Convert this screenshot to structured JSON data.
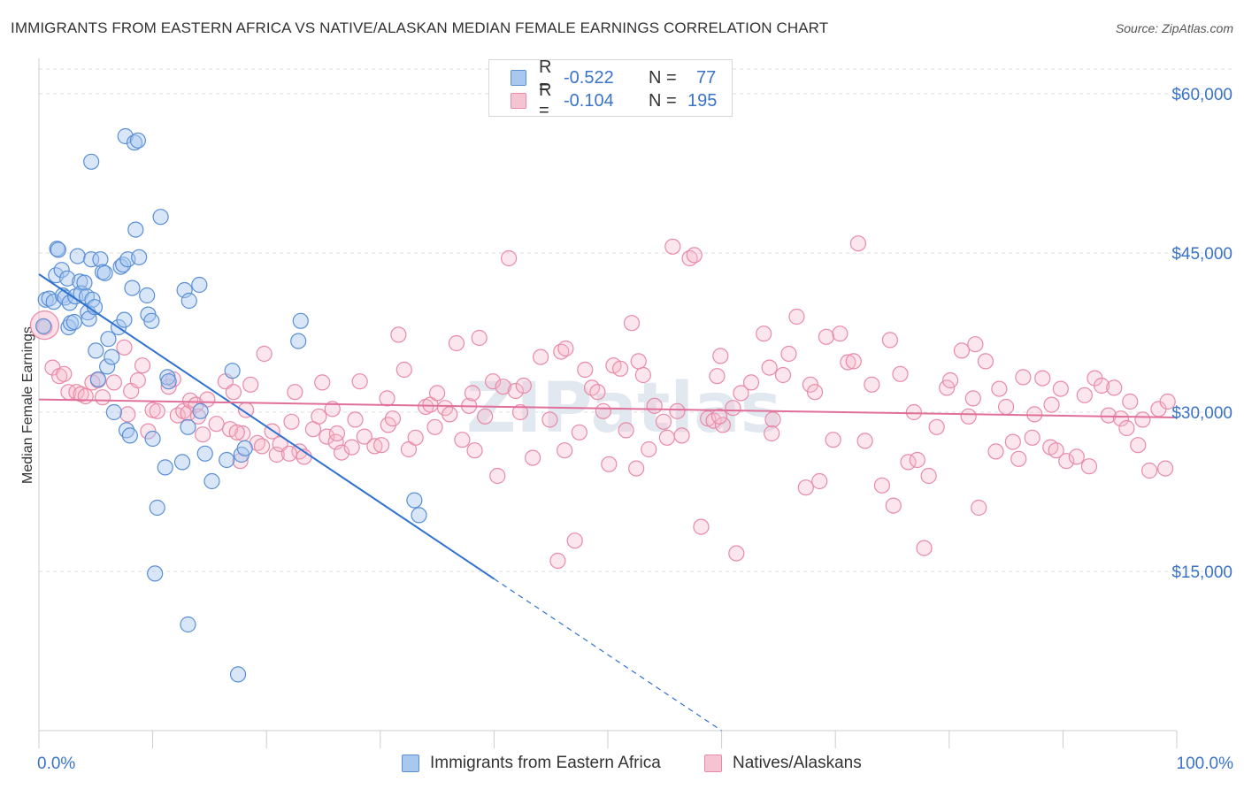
{
  "title": "IMMIGRANTS FROM EASTERN AFRICA VS NATIVE/ALASKAN MEDIAN FEMALE EARNINGS CORRELATION CHART",
  "source": "Source: ZipAtlas.com",
  "watermark": "ZIPatlas",
  "colors": {
    "blue_fill": "#a9c8f0",
    "blue_stroke": "#5a8fd6",
    "blue_line": "#2f72d0",
    "pink_fill": "#f5b8cb",
    "pink_stroke": "#e88aa8",
    "pink_line": "#e0709a",
    "axis_label": "#3a73c9",
    "grid": "#dddddd"
  },
  "legend": {
    "rows": [
      {
        "r_label": "R =",
        "r_value": "-0.522",
        "n_label": "N =",
        "n_value": "77"
      },
      {
        "r_label": "R =",
        "r_value": "-0.104",
        "n_label": "N =",
        "n_value": "195"
      }
    ]
  },
  "bottom_legend": {
    "series1": "Immigrants from Eastern Africa",
    "series2": "Natives/Alaskans"
  },
  "chart_data": {
    "type": "scatter",
    "title": "IMMIGRANTS FROM EASTERN AFRICA VS NATIVE/ALASKAN MEDIAN FEMALE EARNINGS CORRELATION CHART",
    "xlabel": "",
    "ylabel": "Median Female Earnings",
    "xlim": [
      0,
      100
    ],
    "ylim": [
      0,
      63000
    ],
    "x_tick_labels": [
      "0.0%",
      "100.0%"
    ],
    "y_ticks": [
      15000,
      30000,
      45000,
      60000
    ],
    "y_tick_labels": [
      "$15,000",
      "$30,000",
      "$45,000",
      "$60,000"
    ],
    "grid": "horizontal dashed",
    "legend_position": "top-center",
    "series": [
      {
        "name": "Immigrants from Eastern Africa",
        "R": -0.522,
        "N": 77,
        "trend": {
          "x0": 0,
          "y0": 43000,
          "x1": 40,
          "y1": 14300,
          "dash_to_x": 60,
          "dash_to_y": 0
        },
        "points": [
          [
            0.4,
            38100
          ],
          [
            0.6,
            40600
          ],
          [
            0.9,
            40700
          ],
          [
            1.3,
            40400
          ],
          [
            1.5,
            42900
          ],
          [
            1.6,
            45400
          ],
          [
            1.7,
            45300
          ],
          [
            2.0,
            43400
          ],
          [
            2.1,
            41000
          ],
          [
            2.3,
            40800
          ],
          [
            2.5,
            42600
          ],
          [
            2.6,
            38000
          ],
          [
            2.7,
            40300
          ],
          [
            2.8,
            38400
          ],
          [
            3.1,
            38500
          ],
          [
            3.2,
            40900
          ],
          [
            3.4,
            44700
          ],
          [
            3.6,
            42300
          ],
          [
            3.7,
            41200
          ],
          [
            4.0,
            42200
          ],
          [
            4.2,
            40900
          ],
          [
            4.3,
            39400
          ],
          [
            4.4,
            38800
          ],
          [
            4.6,
            44400
          ],
          [
            4.7,
            40600
          ],
          [
            4.9,
            39900
          ],
          [
            5.0,
            35800
          ],
          [
            5.2,
            33100
          ],
          [
            5.4,
            44400
          ],
          [
            5.6,
            43200
          ],
          [
            5.8,
            43100
          ],
          [
            6.0,
            34300
          ],
          [
            6.1,
            36900
          ],
          [
            6.4,
            35200
          ],
          [
            6.6,
            30000
          ],
          [
            7.0,
            38000
          ],
          [
            7.2,
            43700
          ],
          [
            7.4,
            43900
          ],
          [
            7.5,
            38700
          ],
          [
            7.6,
            56000
          ],
          [
            7.7,
            28300
          ],
          [
            7.8,
            44400
          ],
          [
            8.0,
            27800
          ],
          [
            8.2,
            41700
          ],
          [
            8.4,
            55400
          ],
          [
            8.5,
            47200
          ],
          [
            8.7,
            55600
          ],
          [
            8.8,
            44600
          ],
          [
            9.5,
            41000
          ],
          [
            9.6,
            39200
          ],
          [
            9.9,
            38600
          ],
          [
            10.0,
            27500
          ],
          [
            10.4,
            21000
          ],
          [
            10.7,
            48400
          ],
          [
            11.1,
            24800
          ],
          [
            11.3,
            33300
          ],
          [
            11.4,
            32900
          ],
          [
            12.6,
            25300
          ],
          [
            12.8,
            41500
          ],
          [
            13.1,
            28600
          ],
          [
            13.2,
            40500
          ],
          [
            14.1,
            42000
          ],
          [
            14.2,
            30100
          ],
          [
            14.6,
            26100
          ],
          [
            15.2,
            23500
          ],
          [
            16.5,
            25500
          ],
          [
            17.0,
            33900
          ],
          [
            17.5,
            5300
          ],
          [
            17.8,
            26000
          ],
          [
            18.1,
            26600
          ],
          [
            22.8,
            36700
          ],
          [
            23.0,
            38600
          ],
          [
            33.0,
            21700
          ],
          [
            33.4,
            20300
          ],
          [
            4.6,
            53600
          ],
          [
            10.2,
            14800
          ],
          [
            13.1,
            10000
          ]
        ]
      },
      {
        "name": "Natives/Alaskans",
        "R": -0.104,
        "N": 195,
        "trend": {
          "x0": 0,
          "y0": 31200,
          "x1": 100,
          "y1": 29500
        },
        "points": [
          [
            0.5,
            38000
          ],
          [
            1.2,
            34200
          ],
          [
            1.8,
            33400
          ],
          [
            2.2,
            33600
          ],
          [
            2.6,
            31900
          ],
          [
            3.3,
            31900
          ],
          [
            3.7,
            31700
          ],
          [
            4.1,
            31500
          ],
          [
            4.7,
            32800
          ],
          [
            5.2,
            33000
          ],
          [
            5.6,
            31400
          ],
          [
            6.6,
            32800
          ],
          [
            7.5,
            36100
          ],
          [
            7.8,
            29800
          ],
          [
            8.1,
            32000
          ],
          [
            8.7,
            33000
          ],
          [
            9.1,
            34400
          ],
          [
            9.6,
            28200
          ],
          [
            10.0,
            30200
          ],
          [
            10.4,
            30100
          ],
          [
            11.4,
            32400
          ],
          [
            11.8,
            33100
          ],
          [
            12.2,
            29700
          ],
          [
            12.7,
            30100
          ],
          [
            13.1,
            29900
          ],
          [
            13.3,
            31100
          ],
          [
            13.8,
            30700
          ],
          [
            14.0,
            29600
          ],
          [
            14.4,
            27900
          ],
          [
            14.8,
            31200
          ],
          [
            15.6,
            28900
          ],
          [
            16.4,
            32900
          ],
          [
            16.8,
            28400
          ],
          [
            17.1,
            31900
          ],
          [
            17.7,
            25400
          ],
          [
            17.9,
            28000
          ],
          [
            18.2,
            30200
          ],
          [
            18.6,
            32600
          ],
          [
            19.2,
            27100
          ],
          [
            19.6,
            26800
          ],
          [
            19.8,
            35500
          ],
          [
            20.5,
            28200
          ],
          [
            20.9,
            26000
          ],
          [
            21.2,
            27000
          ],
          [
            22.2,
            29100
          ],
          [
            22.5,
            31900
          ],
          [
            22.9,
            26300
          ],
          [
            23.3,
            25800
          ],
          [
            24.1,
            28400
          ],
          [
            24.6,
            29600
          ],
          [
            24.9,
            32800
          ],
          [
            25.3,
            27700
          ],
          [
            25.8,
            30300
          ],
          [
            26.1,
            27200
          ],
          [
            26.6,
            26200
          ],
          [
            27.5,
            26700
          ],
          [
            27.8,
            29300
          ],
          [
            28.2,
            32900
          ],
          [
            28.6,
            27700
          ],
          [
            29.5,
            26800
          ],
          [
            30.1,
            26900
          ],
          [
            30.7,
            28800
          ],
          [
            31.1,
            29400
          ],
          [
            31.6,
            37300
          ],
          [
            32.1,
            34000
          ],
          [
            32.5,
            26500
          ],
          [
            33.1,
            27600
          ],
          [
            34.0,
            30500
          ],
          [
            34.4,
            30700
          ],
          [
            35.0,
            31800
          ],
          [
            35.7,
            30400
          ],
          [
            36.1,
            29800
          ],
          [
            36.7,
            36500
          ],
          [
            37.2,
            27400
          ],
          [
            37.8,
            30600
          ],
          [
            38.3,
            26400
          ],
          [
            38.7,
            37000
          ],
          [
            39.2,
            29600
          ],
          [
            39.9,
            32900
          ],
          [
            40.3,
            24000
          ],
          [
            40.8,
            32400
          ],
          [
            41.3,
            44500
          ],
          [
            41.9,
            32000
          ],
          [
            42.3,
            30000
          ],
          [
            43.4,
            25700
          ],
          [
            44.1,
            35200
          ],
          [
            44.9,
            29300
          ],
          [
            45.6,
            16000
          ],
          [
            45.9,
            35700
          ],
          [
            46.2,
            26400
          ],
          [
            47.1,
            17900
          ],
          [
            47.5,
            28100
          ],
          [
            48.0,
            34000
          ],
          [
            48.6,
            32300
          ],
          [
            49.1,
            31900
          ],
          [
            49.6,
            30100
          ],
          [
            50.1,
            25100
          ],
          [
            50.5,
            34400
          ],
          [
            51.1,
            34100
          ],
          [
            51.6,
            28300
          ],
          [
            52.1,
            38400
          ],
          [
            52.5,
            24700
          ],
          [
            53.1,
            33500
          ],
          [
            53.6,
            26500
          ],
          [
            54.1,
            30600
          ],
          [
            54.9,
            29100
          ],
          [
            55.2,
            27600
          ],
          [
            55.7,
            45600
          ],
          [
            56.1,
            30100
          ],
          [
            56.5,
            27800
          ],
          [
            57.2,
            44500
          ],
          [
            57.6,
            44800
          ],
          [
            58.2,
            19200
          ],
          [
            58.8,
            29400
          ],
          [
            59.3,
            29200
          ],
          [
            59.6,
            33400
          ],
          [
            59.9,
            35300
          ],
          [
            60.1,
            28800
          ],
          [
            61.0,
            30400
          ],
          [
            61.3,
            16700
          ],
          [
            61.7,
            31800
          ],
          [
            62.6,
            32800
          ],
          [
            63.7,
            37400
          ],
          [
            64.2,
            34200
          ],
          [
            64.5,
            29300
          ],
          [
            65.4,
            33500
          ],
          [
            65.9,
            35500
          ],
          [
            66.6,
            39000
          ],
          [
            67.4,
            22900
          ],
          [
            67.8,
            32600
          ],
          [
            68.2,
            31900
          ],
          [
            68.6,
            23500
          ],
          [
            69.2,
            37100
          ],
          [
            69.8,
            27400
          ],
          [
            70.4,
            37400
          ],
          [
            71.1,
            34700
          ],
          [
            72.0,
            45900
          ],
          [
            72.6,
            27300
          ],
          [
            73.2,
            32600
          ],
          [
            74.1,
            23100
          ],
          [
            74.8,
            36800
          ],
          [
            75.1,
            21200
          ],
          [
            75.7,
            33600
          ],
          [
            76.4,
            25300
          ],
          [
            76.9,
            30000
          ],
          [
            77.2,
            25500
          ],
          [
            77.8,
            17200
          ],
          [
            78.2,
            24000
          ],
          [
            78.9,
            28600
          ],
          [
            79.8,
            32300
          ],
          [
            80.1,
            33000
          ],
          [
            81.1,
            35800
          ],
          [
            81.7,
            29600
          ],
          [
            82.1,
            31300
          ],
          [
            82.6,
            21000
          ],
          [
            83.2,
            34800
          ],
          [
            84.1,
            26300
          ],
          [
            84.4,
            32200
          ],
          [
            85.0,
            30500
          ],
          [
            85.6,
            27200
          ],
          [
            86.1,
            25600
          ],
          [
            86.5,
            33300
          ],
          [
            87.3,
            27600
          ],
          [
            87.5,
            29800
          ],
          [
            88.2,
            33200
          ],
          [
            88.9,
            26700
          ],
          [
            89.4,
            26400
          ],
          [
            89.8,
            32200
          ],
          [
            90.3,
            25400
          ],
          [
            91.2,
            25800
          ],
          [
            91.9,
            31600
          ],
          [
            92.3,
            24900
          ],
          [
            92.8,
            33200
          ],
          [
            93.4,
            32500
          ],
          [
            94.0,
            29700
          ],
          [
            94.5,
            32300
          ],
          [
            95.1,
            29400
          ],
          [
            95.6,
            28500
          ],
          [
            95.9,
            31000
          ],
          [
            96.6,
            26900
          ],
          [
            97.0,
            29300
          ],
          [
            97.6,
            24500
          ],
          [
            98.4,
            30300
          ],
          [
            99.2,
            31000
          ],
          [
            99.0,
            24700
          ],
          [
            89.0,
            30700
          ],
          [
            82.3,
            36400
          ],
          [
            71.6,
            34800
          ],
          [
            64.4,
            28000
          ],
          [
            59.8,
            29600
          ],
          [
            52.7,
            34800
          ],
          [
            46.3,
            36000
          ],
          [
            42.6,
            32500
          ],
          [
            38.1,
            31800
          ],
          [
            34.8,
            28600
          ],
          [
            30.6,
            31300
          ],
          [
            26.2,
            28000
          ],
          [
            22.0,
            26100
          ],
          [
            17.4,
            28100
          ]
        ]
      }
    ]
  }
}
